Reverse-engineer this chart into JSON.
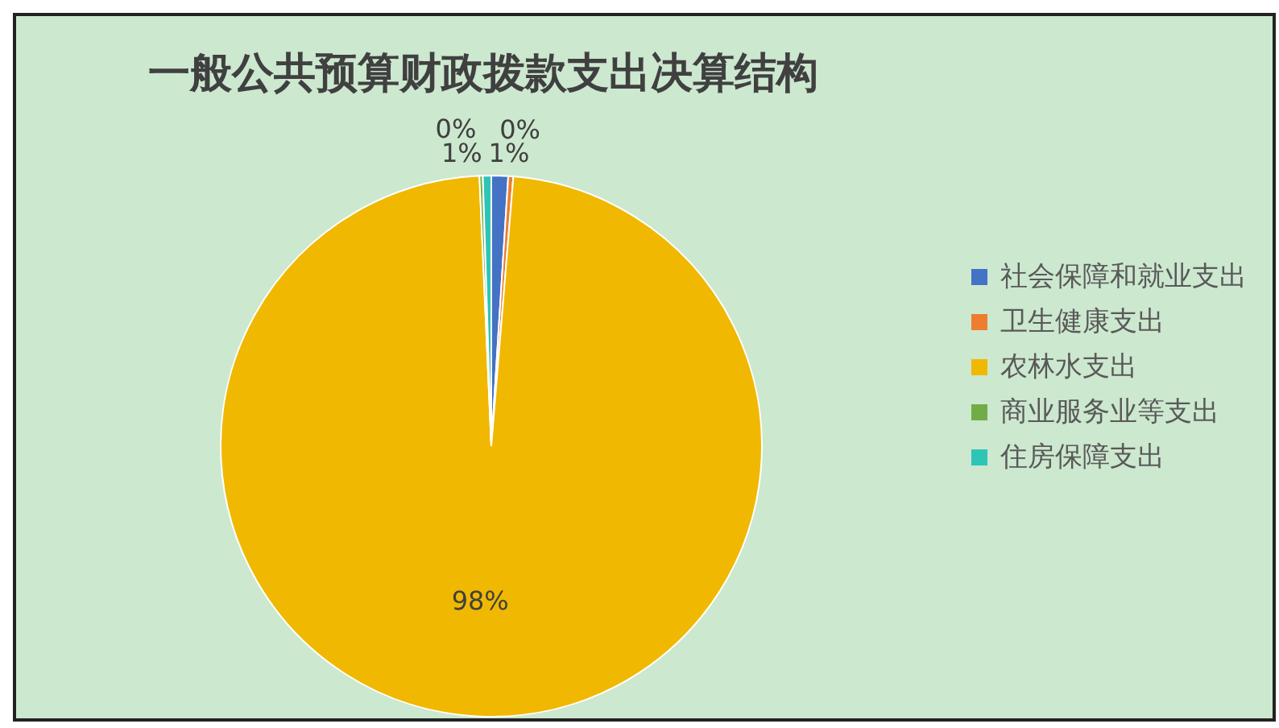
{
  "chart_data": {
    "type": "pie",
    "title": "一般公共预算财政拨款支出决算结构",
    "categories": [
      "社会保障和就业支出",
      "卫生健康支出",
      "农林水支出",
      "商业服务业等支出",
      "住房保障支出"
    ],
    "values": [
      1,
      0.3,
      98,
      0.2,
      0.5
    ],
    "value_labels": [
      "1%",
      "0%",
      "98%",
      "0%",
      "1%"
    ],
    "colors": [
      "#4472c4",
      "#ed7d31",
      "#f0b800",
      "#70ad47",
      "#2ec4b6"
    ],
    "legend": "right"
  }
}
